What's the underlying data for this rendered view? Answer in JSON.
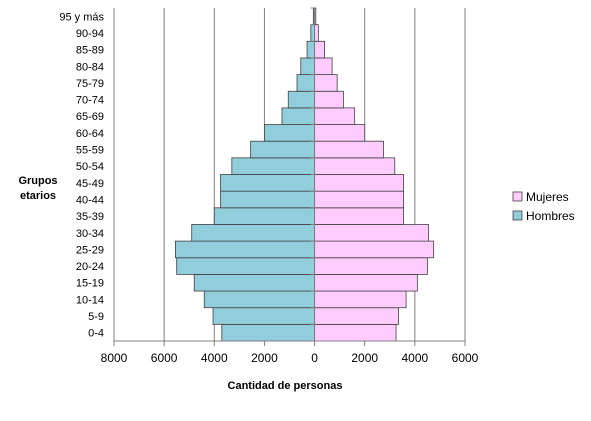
{
  "chart_data": {
    "type": "bar",
    "orientation": "horizontal",
    "variant": "population-pyramid",
    "categories": [
      "0-4",
      "5-9",
      "10-14",
      "15-19",
      "20-24",
      "25-29",
      "30-34",
      "35-39",
      "40-44",
      "45-49",
      "50-54",
      "55-59",
      "60-64",
      "65-69",
      "70-74",
      "75-79",
      "80-84",
      "85-89",
      "90-94",
      "95 y más"
    ],
    "series": [
      {
        "name": "Hombres",
        "color": "#92cddc",
        "side": "left",
        "values": [
          3700,
          4050,
          4400,
          4800,
          5500,
          5550,
          4900,
          4000,
          3750,
          3750,
          3300,
          2550,
          2000,
          1300,
          1050,
          700,
          550,
          300,
          150,
          50
        ]
      },
      {
        "name": "Mujeres",
        "color": "#ffccff",
        "side": "right",
        "values": [
          3250,
          3350,
          3650,
          4100,
          4500,
          4750,
          4550,
          3550,
          3550,
          3550,
          3200,
          2750,
          2000,
          1600,
          1150,
          900,
          700,
          400,
          150,
          50
        ]
      }
    ],
    "xlim": [
      -8000,
      6000
    ],
    "xticks": [
      -8000,
      -6000,
      -4000,
      -2000,
      0,
      2000,
      4000,
      6000
    ],
    "xtick_labels": [
      "8000",
      "6000",
      "4000",
      "2000",
      "0",
      "2000",
      "4000",
      "6000"
    ],
    "xlabel": "Cantidad de personas",
    "ylabel": "Grupos etarios",
    "ylabel_lines": [
      "Grupos",
      "etarios"
    ],
    "grid": "vertical",
    "legend_position": "right",
    "legend_order": [
      "Mujeres",
      "Hombres"
    ]
  }
}
